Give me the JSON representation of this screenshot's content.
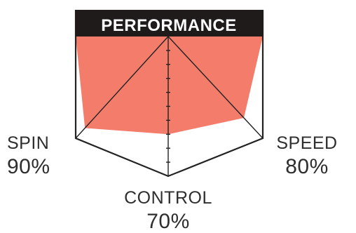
{
  "chart_data": {
    "type": "radar",
    "title": "PERFORMANCE",
    "axes": [
      {
        "name": "SPIN",
        "value": 90,
        "value_label": "90%"
      },
      {
        "name": "CONTROL",
        "value": 70,
        "value_label": "70%"
      },
      {
        "name": "SPEED",
        "value": 80,
        "value_label": "80%"
      }
    ],
    "max": 100,
    "colors": {
      "fill": "#f47c6b",
      "header": "#1f1b1b",
      "title_text": "#ffffff",
      "lines": "#222222",
      "labels": "#2e2e2e"
    }
  }
}
